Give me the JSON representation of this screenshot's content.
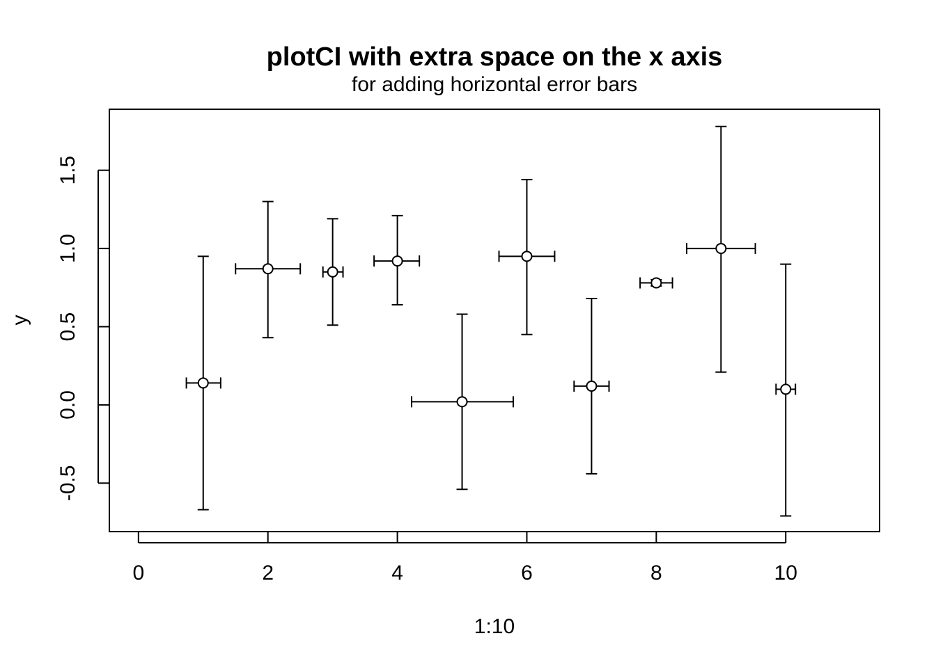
{
  "chart_data": {
    "type": "scatter",
    "title": "plotCI with extra space on the x axis",
    "subtitle": "for adding horizontal error bars",
    "xlabel": "1:10",
    "ylabel": "y",
    "xlim": [
      -0.45,
      11.45
    ],
    "ylim": [
      -0.81,
      1.89
    ],
    "x_ticks": [
      0,
      2,
      4,
      6,
      8,
      10
    ],
    "y_ticks": [
      -0.5,
      0.0,
      0.5,
      1.0,
      1.5
    ],
    "x_tick_labels": [
      "0",
      "2",
      "4",
      "6",
      "8",
      "10"
    ],
    "y_tick_labels": [
      "-0.5",
      "0.0",
      "0.5",
      "1.0",
      "1.5"
    ],
    "grid": false,
    "points": [
      {
        "x": 1,
        "y": 0.14,
        "y_lower": -0.67,
        "y_upper": 0.95,
        "x_lower": 0.74,
        "x_upper": 1.27
      },
      {
        "x": 2,
        "y": 0.87,
        "y_lower": 0.43,
        "y_upper": 1.3,
        "x_lower": 1.5,
        "x_upper": 2.5
      },
      {
        "x": 3,
        "y": 0.85,
        "y_lower": 0.51,
        "y_upper": 1.19,
        "x_lower": 2.85,
        "x_upper": 3.16
      },
      {
        "x": 4,
        "y": 0.92,
        "y_lower": 0.64,
        "y_upper": 1.21,
        "x_lower": 3.64,
        "x_upper": 4.34
      },
      {
        "x": 5,
        "y": 0.02,
        "y_lower": -0.54,
        "y_upper": 0.58,
        "x_lower": 4.22,
        "x_upper": 5.79
      },
      {
        "x": 6,
        "y": 0.95,
        "y_lower": 0.45,
        "y_upper": 1.44,
        "x_lower": 5.57,
        "x_upper": 6.43
      },
      {
        "x": 7,
        "y": 0.12,
        "y_lower": -0.44,
        "y_upper": 0.68,
        "x_lower": 6.73,
        "x_upper": 7.27
      },
      {
        "x": 8,
        "y": 0.78,
        "y_lower": 0.76,
        "y_upper": 0.8,
        "x_lower": 7.75,
        "x_upper": 8.25
      },
      {
        "x": 9,
        "y": 1.0,
        "y_lower": 0.21,
        "y_upper": 1.78,
        "x_lower": 8.47,
        "x_upper": 9.53
      },
      {
        "x": 10,
        "y": 0.1,
        "y_lower": -0.71,
        "y_upper": 0.9,
        "x_lower": 9.85,
        "x_upper": 10.15
      }
    ]
  }
}
